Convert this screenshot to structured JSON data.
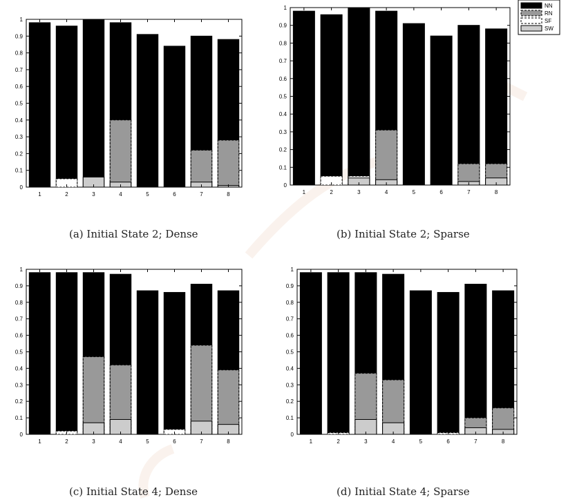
{
  "chart_data": [
    {
      "id": "a",
      "type": "bar",
      "caption": "(a)  Initial State 2; Dense",
      "categories": [
        "1",
        "2",
        "3",
        "4",
        "5",
        "6",
        "7",
        "8"
      ],
      "ylim": [
        0,
        1
      ],
      "yticks": [
        "0",
        "0.1",
        "0.2",
        "0.3",
        "0.4",
        "0.5",
        "0.6",
        "0.7",
        "0.8",
        "0.9",
        "1"
      ],
      "legend": null,
      "series": [
        {
          "name": "NN",
          "values": [
            0.98,
            0.96,
            1.0,
            0.98,
            0.91,
            0.84,
            0.9,
            0.88
          ]
        },
        {
          "name": "RN",
          "values": [
            0,
            0,
            0,
            0.4,
            0,
            0,
            0.22,
            0.28
          ]
        },
        {
          "name": "SF",
          "values": [
            0,
            0.05,
            0,
            0,
            0,
            0,
            0,
            0
          ]
        },
        {
          "name": "SW",
          "values": [
            0,
            0,
            0.06,
            0.03,
            0,
            0,
            0.03,
            0.01
          ]
        }
      ]
    },
    {
      "id": "b",
      "type": "bar",
      "caption": "(b)  Initial State 2; Sparse",
      "categories": [
        "1",
        "2",
        "3",
        "4",
        "5",
        "6",
        "7",
        "8"
      ],
      "ylim": [
        0,
        1
      ],
      "yticks": [
        "0",
        "0.1",
        "0.2",
        "0.3",
        "0.4",
        "0.5",
        "0.6",
        "0.7",
        "0.8",
        "0.9",
        "1"
      ],
      "legend": "outside-top-right",
      "series": [
        {
          "name": "NN",
          "values": [
            0.98,
            0.96,
            1.0,
            0.98,
            0.91,
            0.84,
            0.9,
            0.88
          ]
        },
        {
          "name": "RN",
          "values": [
            0,
            0,
            0,
            0.31,
            0,
            0,
            0.12,
            0.12
          ]
        },
        {
          "name": "SF",
          "values": [
            0,
            0.05,
            0.05,
            0,
            0,
            0,
            0,
            0
          ]
        },
        {
          "name": "SW",
          "values": [
            0,
            0,
            0.04,
            0.03,
            0,
            0,
            0.02,
            0.04
          ]
        }
      ]
    },
    {
      "id": "c",
      "type": "bar",
      "caption": "(c)  Initial State 4; Dense",
      "categories": [
        "1",
        "2",
        "3",
        "4",
        "5",
        "6",
        "7",
        "8"
      ],
      "ylim": [
        0,
        1
      ],
      "yticks": [
        "0",
        "0.1",
        "0.2",
        "0.3",
        "0.4",
        "0.5",
        "0.6",
        "0.7",
        "0.8",
        "0.9",
        "1"
      ],
      "legend": null,
      "series": [
        {
          "name": "NN",
          "values": [
            0.98,
            0.98,
            0.98,
            0.97,
            0.87,
            0.86,
            0.91,
            0.87
          ]
        },
        {
          "name": "RN",
          "values": [
            0,
            0,
            0.47,
            0.42,
            0,
            0,
            0.54,
            0.39
          ]
        },
        {
          "name": "SF",
          "values": [
            0,
            0.02,
            0,
            0,
            0,
            0.03,
            0,
            0
          ]
        },
        {
          "name": "SW",
          "values": [
            0,
            0,
            0.07,
            0.09,
            0,
            0,
            0.08,
            0.06
          ]
        }
      ]
    },
    {
      "id": "d",
      "type": "bar",
      "caption": "(d)  Initial State 4; Sparse",
      "categories": [
        "1",
        "2",
        "3",
        "4",
        "5",
        "6",
        "7",
        "8"
      ],
      "ylim": [
        0,
        1
      ],
      "yticks": [
        "0",
        "0.1",
        "0.2",
        "0.3",
        "0.4",
        "0.5",
        "0.6",
        "0.7",
        "0.8",
        "0.9",
        "1"
      ],
      "legend": null,
      "series": [
        {
          "name": "NN",
          "values": [
            0.98,
            0.98,
            0.98,
            0.97,
            0.87,
            0.86,
            0.91,
            0.87
          ]
        },
        {
          "name": "RN",
          "values": [
            0,
            0,
            0.37,
            0.33,
            0,
            0,
            0.1,
            0.16
          ]
        },
        {
          "name": "SF",
          "values": [
            0,
            0.01,
            0,
            0,
            0,
            0.01,
            0,
            0
          ]
        },
        {
          "name": "SW",
          "values": [
            0,
            0,
            0.09,
            0.07,
            0,
            0,
            0.04,
            0.03
          ]
        }
      ]
    }
  ],
  "colors": {
    "NN": "#000000",
    "RN": "#999999",
    "SF": "#ffffff",
    "SW": "#cccccc"
  }
}
